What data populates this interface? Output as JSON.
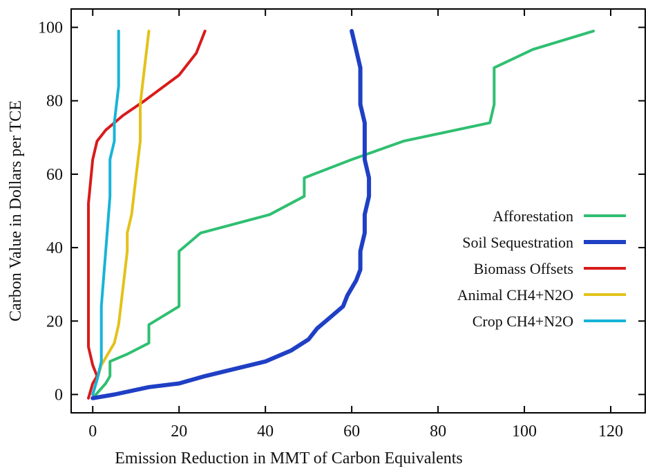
{
  "chart_data": {
    "type": "line",
    "xlabel": "Emission Reduction in MMT of Carbon Equivalents",
    "ylabel": "Carbon Value in Dollars per TCE",
    "xlim": [
      -5,
      128
    ],
    "ylim": [
      -5,
      105
    ],
    "xticks": [
      0,
      20,
      40,
      60,
      80,
      100,
      120
    ],
    "yticks": [
      0,
      20,
      40,
      60,
      80,
      100
    ],
    "grid": false,
    "legend_position": "right-middle",
    "series": [
      {
        "name": "Afforestation",
        "color": "#2fbf71",
        "points": [
          [
            0,
            -1
          ],
          [
            3,
            3
          ],
          [
            4,
            5
          ],
          [
            4,
            9
          ],
          [
            8,
            11
          ],
          [
            13,
            14
          ],
          [
            13,
            19
          ],
          [
            20,
            24
          ],
          [
            20,
            39
          ],
          [
            25,
            44
          ],
          [
            41,
            49
          ],
          [
            49,
            54
          ],
          [
            49,
            59
          ],
          [
            60,
            64
          ],
          [
            72,
            69
          ],
          [
            92,
            74
          ],
          [
            93,
            79
          ],
          [
            93,
            89
          ],
          [
            102,
            94
          ],
          [
            116,
            99
          ]
        ]
      },
      {
        "name": "Soil Sequestration",
        "color": "#1f3fc4",
        "points": [
          [
            0,
            -1
          ],
          [
            5,
            0
          ],
          [
            13,
            2
          ],
          [
            20,
            3
          ],
          [
            26,
            5
          ],
          [
            33,
            7
          ],
          [
            40,
            9
          ],
          [
            46,
            12
          ],
          [
            50,
            15
          ],
          [
            52,
            18
          ],
          [
            55,
            21
          ],
          [
            58,
            24
          ],
          [
            59,
            27
          ],
          [
            61,
            31
          ],
          [
            62,
            34
          ],
          [
            62,
            39
          ],
          [
            63,
            44
          ],
          [
            63,
            49
          ],
          [
            64,
            54
          ],
          [
            64,
            59
          ],
          [
            63,
            64
          ],
          [
            63,
            69
          ],
          [
            63,
            74
          ],
          [
            62,
            79
          ],
          [
            62,
            84
          ],
          [
            62,
            89
          ],
          [
            61,
            94
          ],
          [
            60,
            99
          ]
        ]
      },
      {
        "name": "Biomass Offsets",
        "color": "#d81b1b",
        "points": [
          [
            -1,
            -1
          ],
          [
            0,
            3
          ],
          [
            1,
            5
          ],
          [
            0,
            8
          ],
          [
            -1,
            13
          ],
          [
            -1,
            24
          ],
          [
            -1,
            52
          ],
          [
            0,
            64
          ],
          [
            1,
            69
          ],
          [
            3,
            72
          ],
          [
            7,
            76
          ],
          [
            12,
            80
          ],
          [
            20,
            87
          ],
          [
            24,
            93
          ],
          [
            26,
            99
          ]
        ]
      },
      {
        "name": "Animal CH4+N2O",
        "color": "#e3c21a",
        "points": [
          [
            0,
            0
          ],
          [
            1,
            4
          ],
          [
            2,
            8
          ],
          [
            5,
            14
          ],
          [
            6,
            19
          ],
          [
            7,
            29
          ],
          [
            8,
            39
          ],
          [
            8,
            44
          ],
          [
            9,
            49
          ],
          [
            10,
            59
          ],
          [
            11,
            69
          ],
          [
            11,
            79
          ],
          [
            12,
            89
          ],
          [
            13,
            99
          ]
        ]
      },
      {
        "name": "Crop CH4+N2O",
        "color": "#17b4d8",
        "points": [
          [
            0,
            0
          ],
          [
            1,
            4
          ],
          [
            2,
            9
          ],
          [
            2,
            14
          ],
          [
            2,
            24
          ],
          [
            3,
            39
          ],
          [
            4,
            54
          ],
          [
            4,
            64
          ],
          [
            5,
            69
          ],
          [
            5,
            74
          ],
          [
            6,
            84
          ],
          [
            6,
            94
          ],
          [
            6,
            99
          ]
        ]
      }
    ]
  }
}
